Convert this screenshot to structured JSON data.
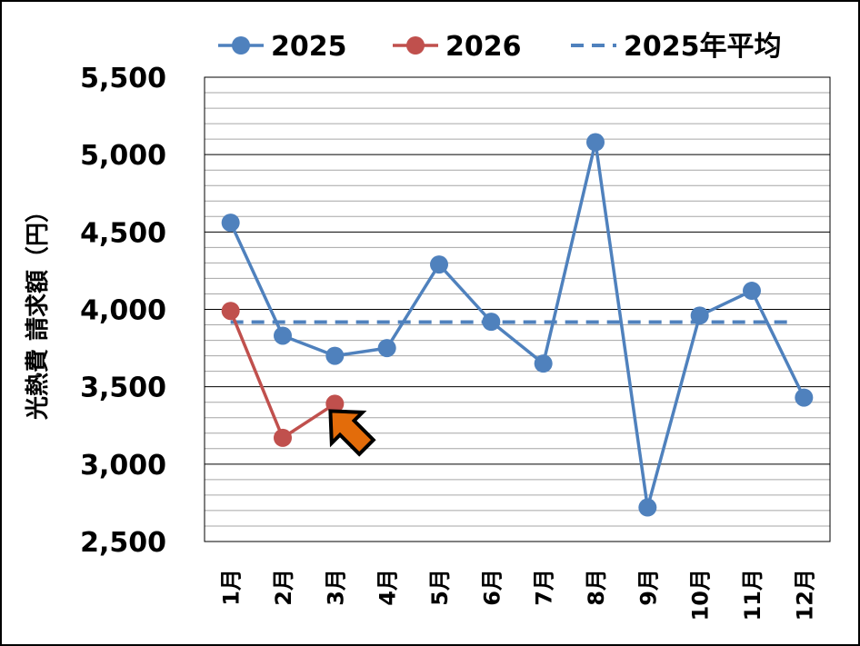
{
  "chart_data": {
    "type": "line",
    "categories": [
      "1月",
      "2月",
      "3月",
      "4月",
      "5月",
      "6月",
      "7月",
      "8月",
      "9月",
      "10月",
      "11月",
      "12月"
    ],
    "series": [
      {
        "name": "2025",
        "values": [
          4560,
          3830,
          3700,
          3750,
          4290,
          3920,
          3650,
          5080,
          2720,
          3960,
          4120,
          3430
        ],
        "color": "#4f81bd"
      },
      {
        "name": "2026",
        "values": [
          3990,
          3170,
          3390,
          null,
          null,
          null,
          null,
          null,
          null,
          null,
          null,
          null
        ],
        "color": "#c0504d"
      }
    ],
    "average": {
      "name": "2025年平均",
      "value": 3918,
      "color": "#4f81bd"
    },
    "ylabel": "光熱費 請求額（円）",
    "ylim": [
      2500,
      5500
    ],
    "yticks": [
      2500,
      3000,
      3500,
      4000,
      4500,
      5000,
      5500
    ],
    "ytick_labels": [
      "2,500",
      "3,000",
      "3,500",
      "4,000",
      "4,500",
      "5,000",
      "5,500"
    ],
    "legend": "top",
    "grid": true,
    "arrow_color": "#e36c0a"
  }
}
